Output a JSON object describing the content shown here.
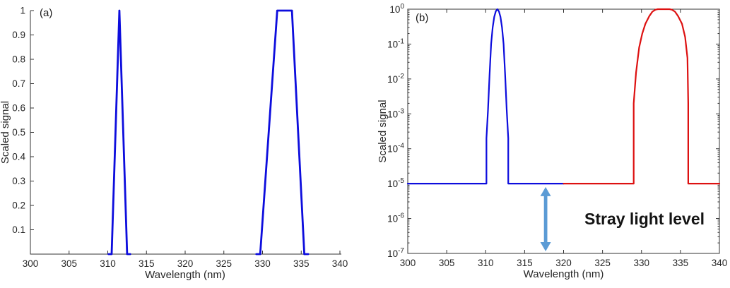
{
  "ui": {
    "panel_a_label": "(a)",
    "panel_b_label": "(b)",
    "stray_light_label": "Stray light level"
  },
  "colors": {
    "line_blue": "#0d0ddd",
    "line_red": "#dd1111",
    "arrow_blue": "#5b9bd5",
    "axis": "#333333",
    "text": "#262626"
  },
  "chart_data": [
    {
      "type": "line",
      "panel": "a",
      "xlabel": "Wavelength (nm)",
      "ylabel": "Scaled signal",
      "x_range": [
        300,
        340
      ],
      "x_ticks": [
        300,
        305,
        310,
        315,
        320,
        325,
        330,
        335,
        340
      ],
      "y_scale": "linear",
      "y_range": [
        0,
        1
      ],
      "y_ticks": [
        0.1,
        0.2,
        0.3,
        0.4,
        0.5,
        0.6,
        0.7,
        0.8,
        0.9,
        1
      ],
      "y_tick_labels": [
        "0.1",
        "0.2",
        "0.3",
        "0.4",
        "0.5",
        "0.6",
        "0.7",
        "0.8",
        "0.9",
        "1"
      ],
      "grid": false,
      "box": false,
      "series": [
        {
          "name": "slit-function-band-311nm",
          "color": "#0d0ddd",
          "width": 2.8,
          "points": [
            [
              310.1,
              0
            ],
            [
              310.5,
              0
            ],
            [
              311.5,
              1
            ],
            [
              312.5,
              0
            ],
            [
              312.9,
              0
            ]
          ]
        },
        {
          "name": "slit-function-band-333nm",
          "color": "#0d0ddd",
          "width": 2.8,
          "points": [
            [
              329.2,
              0
            ],
            [
              329.7,
              0
            ],
            [
              331.9,
              1
            ],
            [
              333.8,
              1
            ],
            [
              335.4,
              0
            ],
            [
              335.9,
              0
            ]
          ]
        }
      ]
    },
    {
      "type": "line",
      "panel": "b",
      "xlabel": "Wavelength (nm)",
      "ylabel": "Scaled signal",
      "x_range": [
        300,
        340
      ],
      "x_ticks": [
        300,
        305,
        310,
        315,
        320,
        325,
        330,
        335,
        340
      ],
      "y_scale": "log",
      "y_exp_range": [
        0,
        -7
      ],
      "y_tick_exponents": [
        0,
        -1,
        -2,
        -3,
        -4,
        -5,
        -6,
        -7
      ],
      "grid": false,
      "box": true,
      "stray_light_level": 1e-05,
      "series": [
        {
          "name": "band-311nm-log-scale",
          "color": "#0d0ddd",
          "width": 2.2,
          "points": [
            [
              300,
              1e-05
            ],
            [
              310.1,
              1e-05
            ],
            [
              310.1,
              0.0002
            ],
            [
              310.3,
              0.0013
            ],
            [
              310.5,
              0.013
            ],
            [
              310.7,
              0.1
            ],
            [
              310.9,
              0.3
            ],
            [
              311.1,
              0.6
            ],
            [
              311.3,
              0.87
            ],
            [
              311.5,
              1.0
            ],
            [
              311.7,
              0.87
            ],
            [
              311.9,
              0.6
            ],
            [
              312.1,
              0.3
            ],
            [
              312.3,
              0.1
            ],
            [
              312.5,
              0.013
            ],
            [
              312.7,
              0.0013
            ],
            [
              312.9,
              0.0002
            ],
            [
              312.9,
              1e-05
            ],
            [
              320,
              1e-05
            ]
          ]
        },
        {
          "name": "band-333nm-log-scale",
          "color": "#dd1111",
          "width": 2.2,
          "points": [
            [
              320,
              1e-05
            ],
            [
              329.0,
              1e-05
            ],
            [
              329.0,
              0.002
            ],
            [
              329.3,
              0.015
            ],
            [
              329.7,
              0.08
            ],
            [
              330.1,
              0.2
            ],
            [
              330.5,
              0.38
            ],
            [
              331.0,
              0.63
            ],
            [
              331.4,
              0.85
            ],
            [
              331.8,
              0.97
            ],
            [
              332.1,
              1.0
            ],
            [
              333.6,
              1.0
            ],
            [
              333.9,
              0.97
            ],
            [
              334.3,
              0.85
            ],
            [
              334.7,
              0.63
            ],
            [
              335.2,
              0.38
            ],
            [
              335.6,
              0.16
            ],
            [
              335.9,
              0.04
            ],
            [
              336.0,
              0.002
            ],
            [
              336.0,
              1e-05
            ],
            [
              340,
              1e-05
            ]
          ]
        }
      ],
      "annotation": {
        "label": "Stray light level",
        "arrow": {
          "x": 317.7,
          "y_top": 8e-06,
          "y_bottom": 1.15e-07,
          "color": "#5b9bd5"
        }
      }
    }
  ]
}
